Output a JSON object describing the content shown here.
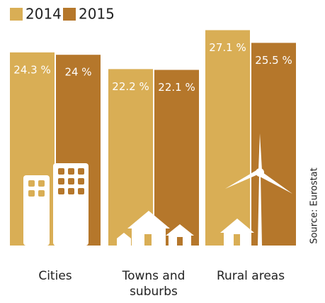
{
  "chart_data": {
    "type": "bar",
    "categories": [
      "Cities",
      "Towns and suburbs",
      "Rural areas"
    ],
    "series": [
      {
        "name": "2014",
        "color": "#d9ae55",
        "values": [
          24.3,
          22.2,
          27.1
        ],
        "value_labels": [
          "24.3 %",
          "22.2 %",
          "27.1 %"
        ]
      },
      {
        "name": "2015",
        "color": "#b5772b",
        "values": [
          24,
          22.1,
          25.5
        ],
        "value_labels": [
          "24 %",
          "22.1 %",
          "25.5 %"
        ]
      }
    ],
    "legend": "top-left",
    "source": "Source: Eurostat"
  }
}
